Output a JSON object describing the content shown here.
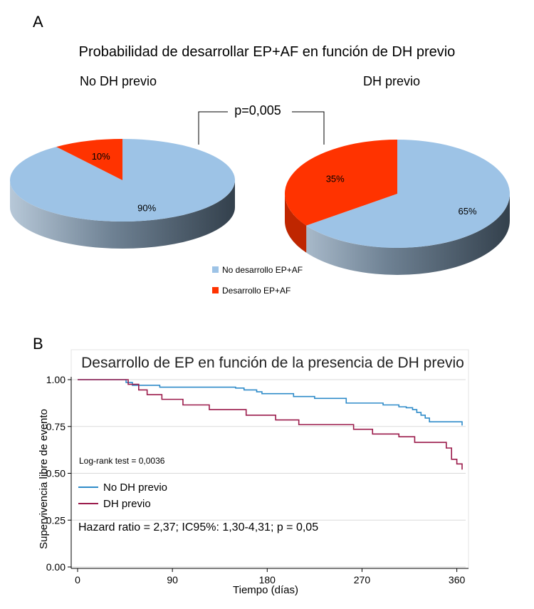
{
  "figure": {
    "panel_a_label": "A",
    "panel_b_label": "B"
  },
  "chart_data": [
    {
      "type": "pie",
      "title": "Probabilidad de desarrollar EP+AF en función de DH previo",
      "comparison_p": "p=0,005",
      "legend": {
        "placement": "bottom-center",
        "entries": [
          {
            "label": "No desarrollo EP+AF",
            "color": "#9DC3E6"
          },
          {
            "label": "Desarrollo EP+AF",
            "color": "#FF3300"
          }
        ]
      },
      "pies": [
        {
          "label": "No DH previo",
          "slices": [
            {
              "category": "No desarrollo EP+AF",
              "value": 90,
              "label": "90%"
            },
            {
              "category": "Desarrollo EP+AF",
              "value": 10,
              "label": "10%"
            }
          ]
        },
        {
          "label": "DH previo",
          "slices": [
            {
              "category": "No desarrollo EP+AF",
              "value": 65,
              "label": "65%"
            },
            {
              "category": "Desarrollo EP+AF",
              "value": 35,
              "label": "35%"
            }
          ]
        }
      ]
    },
    {
      "type": "line",
      "subtype": "kaplan-meier step",
      "title": "Desarrollo de EP en función de la presencia de DH previo",
      "xlabel": "Tiempo (días)",
      "ylabel": "Supervivencia libre de evento",
      "xlim": [
        0,
        365
      ],
      "ylim": [
        0,
        1
      ],
      "xticks": [
        0,
        90,
        180,
        270,
        360
      ],
      "xtick_labels": [
        "0",
        "90",
        "180",
        "270",
        "360"
      ],
      "yticks": [
        0,
        0.25,
        0.5,
        0.75,
        1
      ],
      "ytick_labels": [
        "0.00",
        "0.25",
        "0.50",
        "0.75",
        "1.00"
      ],
      "grid": "horizontal",
      "legend": {
        "placement": "lower-left"
      },
      "annotations": [
        "Log-rank test = 0,0036",
        "Hazard ratio = 2,37; IC95%: 1,30-4,31; p = 0,05"
      ],
      "series": [
        {
          "name": "No DH previo",
          "color": "#2E8BC9",
          "x": [
            0,
            40,
            46,
            52,
            78,
            150,
            158,
            170,
            175,
            205,
            225,
            255,
            290,
            305,
            312,
            318,
            322,
            326,
            330,
            334,
            365
          ],
          "y": [
            1.0,
            1.0,
            0.985,
            0.97,
            0.96,
            0.955,
            0.945,
            0.935,
            0.925,
            0.91,
            0.9,
            0.875,
            0.865,
            0.855,
            0.85,
            0.84,
            0.825,
            0.81,
            0.795,
            0.775,
            0.755
          ]
        },
        {
          "name": "DH previo",
          "color": "#9B1B4B",
          "x": [
            0,
            40,
            48,
            58,
            66,
            80,
            100,
            125,
            160,
            188,
            210,
            262,
            280,
            305,
            320,
            350,
            355,
            360,
            365
          ],
          "y": [
            1.0,
            1.0,
            0.975,
            0.945,
            0.92,
            0.895,
            0.865,
            0.84,
            0.81,
            0.785,
            0.76,
            0.735,
            0.71,
            0.695,
            0.665,
            0.635,
            0.575,
            0.55,
            0.52
          ]
        }
      ]
    }
  ]
}
